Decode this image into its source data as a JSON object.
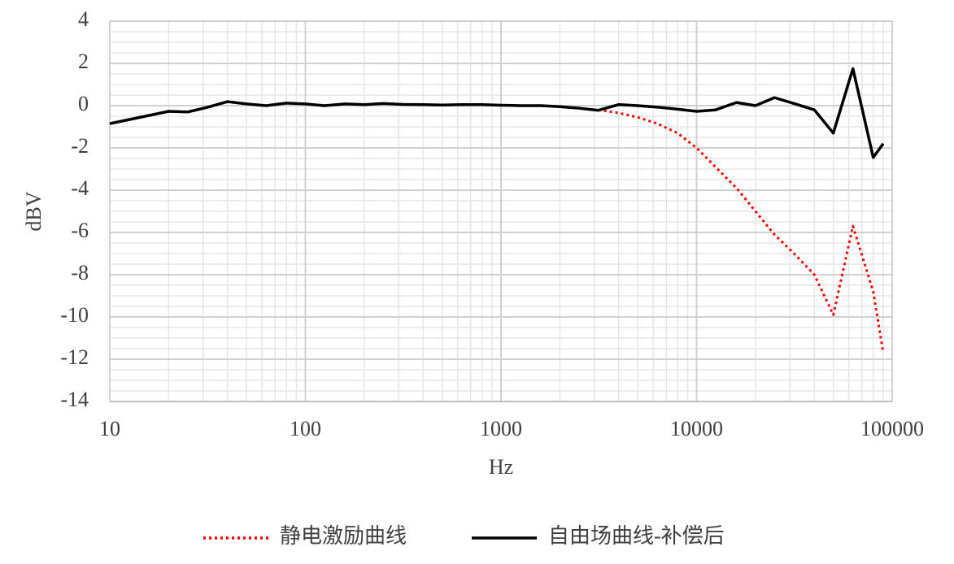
{
  "chart_data": {
    "type": "line",
    "x_label": "Hz",
    "y_label": "dBV",
    "xscale": "log",
    "grid": true,
    "minor_grid": true,
    "legend": "bottom",
    "xlim": [
      10,
      100000
    ],
    "xticks": [
      10,
      100,
      1000,
      10000,
      100000
    ],
    "ylim": [
      -14,
      4
    ],
    "yticks": [
      -14,
      -12,
      -10,
      -8,
      -6,
      -4,
      -2,
      0,
      2,
      4
    ],
    "x": [
      10,
      20,
      25,
      31.5,
      40,
      50,
      63,
      80,
      100,
      125,
      160,
      200,
      250,
      315,
      400,
      500,
      630,
      800,
      1000,
      1250,
      1600,
      2000,
      2500,
      3150,
      4000,
      5000,
      6300,
      8000,
      10000,
      12500,
      16000,
      20000,
      25000,
      31500,
      40000,
      50000,
      63000,
      80000,
      90000
    ],
    "series": [
      {
        "name": "静电激励曲线",
        "color": "#ff0000",
        "style": "dotted",
        "values": [
          null,
          null,
          null,
          null,
          null,
          null,
          null,
          null,
          null,
          null,
          null,
          null,
          null,
          null,
          null,
          null,
          null,
          null,
          null,
          null,
          null,
          null,
          null,
          -0.2,
          -0.35,
          -0.55,
          -0.85,
          -1.3,
          -2.0,
          -2.9,
          -3.9,
          -5.0,
          -6.1,
          -7.0,
          -8.0,
          -9.9,
          -5.7,
          -8.8,
          -11.7
        ]
      },
      {
        "name": "自由场曲线-补偿后",
        "color": "#000000",
        "style": "solid",
        "values": [
          -0.85,
          -0.27,
          -0.3,
          -0.08,
          0.19,
          0.08,
          0.0,
          0.12,
          0.08,
          0.0,
          0.08,
          0.05,
          0.1,
          0.06,
          0.05,
          0.03,
          0.05,
          0.05,
          0.02,
          0.0,
          0.0,
          -0.05,
          -0.12,
          -0.22,
          0.05,
          0.0,
          -0.07,
          -0.17,
          -0.27,
          -0.2,
          0.15,
          0.0,
          0.38,
          0.1,
          -0.2,
          -1.3,
          1.75,
          -2.45,
          -1.8
        ]
      }
    ]
  }
}
